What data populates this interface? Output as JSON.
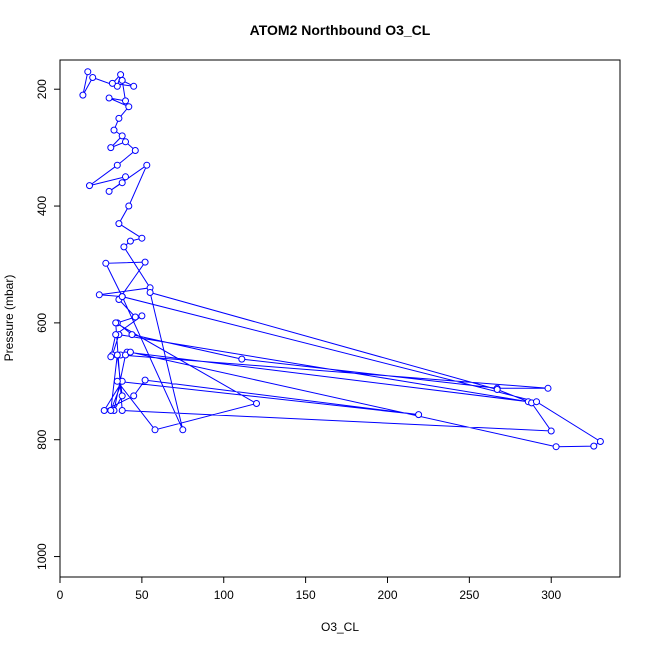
{
  "chart_data": {
    "type": "line",
    "title": "ATOM2 Northbound O3_CL",
    "xlabel": "O3_CL",
    "ylabel": "Pressure (mbar)",
    "xlim": [
      0,
      342
    ],
    "ylim": [
      1035,
      150
    ],
    "y_reversed": true,
    "x_ticks": [
      0,
      50,
      100,
      150,
      200,
      250,
      300
    ],
    "y_ticks": [
      200,
      400,
      600,
      800,
      1000
    ],
    "series_color": "#0000ff",
    "marker": "open-circle",
    "grid": false,
    "legend": "none",
    "series": [
      {
        "x": [
          17,
          14,
          20,
          35,
          37,
          32,
          45,
          38,
          40,
          30,
          42,
          36,
          33,
          38,
          31,
          40,
          46,
          35,
          18,
          40,
          38,
          30,
          53,
          42,
          36,
          50,
          43,
          39,
          55,
          24,
          38,
          28,
          52,
          36,
          46,
          35,
          44,
          111,
          267,
          298,
          37,
          32,
          36,
          286,
          41,
          40,
          33,
          38,
          35,
          31,
          38,
          27,
          45,
          52,
          219,
          35,
          58,
          120,
          34,
          38,
          300,
          288,
          267,
          55,
          75,
          38,
          291,
          330,
          326,
          303,
          43,
          31,
          34,
          50
        ],
        "y": [
          170,
          210,
          180,
          195,
          175,
          190,
          195,
          185,
          220,
          215,
          230,
          250,
          270,
          280,
          300,
          290,
          305,
          330,
          365,
          350,
          360,
          375,
          330,
          400,
          430,
          455,
          460,
          470,
          540,
          552,
          555,
          498,
          496,
          560,
          590,
          600,
          620,
          662,
          712,
          712,
          655,
          655,
          620,
          735,
          650,
          655,
          750,
          725,
          655,
          750,
          700,
          750,
          725,
          698,
          757,
          700,
          783,
          738,
          600,
          750,
          785,
          737,
          714,
          548,
          783,
          555,
          735,
          803,
          811,
          812,
          650,
          658,
          620,
          588
        ]
      }
    ]
  }
}
